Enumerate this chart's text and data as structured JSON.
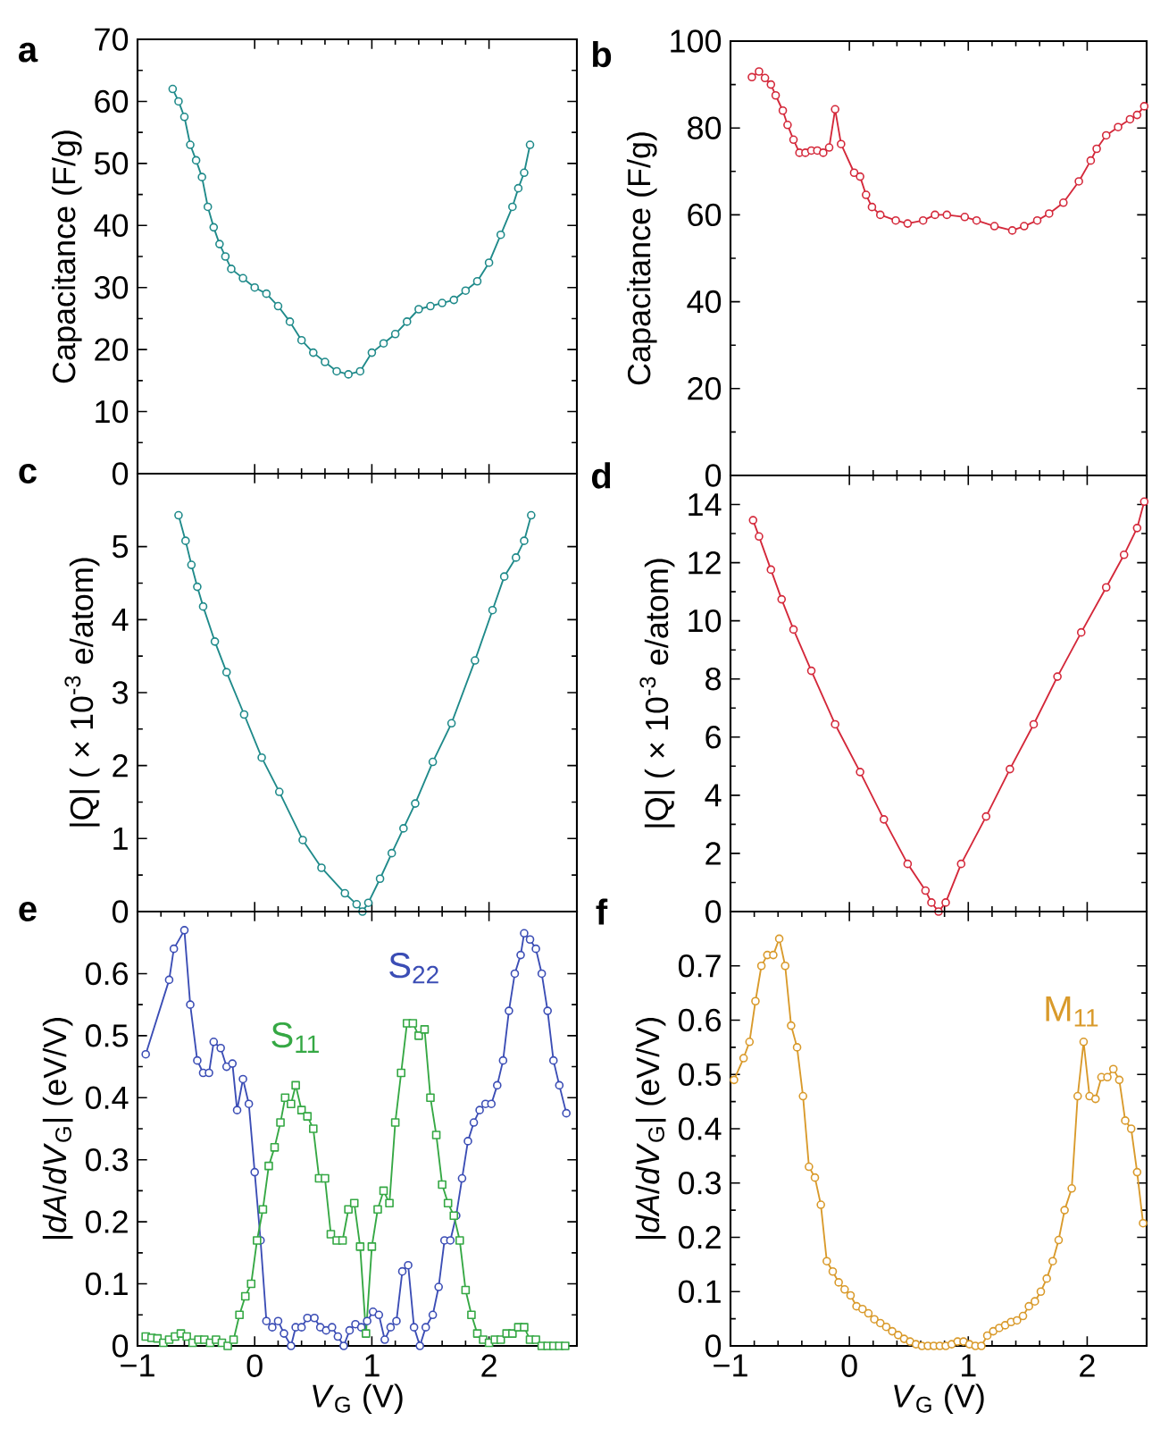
{
  "chart_data": [
    {
      "type": "line",
      "ylabel": "Capacitance (F/g)",
      "annotations": [
        "a"
      ],
      "marker": "circle",
      "tick_labels": "y",
      "color": "#1f8a8a",
      "xlim": [
        -1,
        2.75
      ],
      "xticks": [
        0,
        1,
        2
      ],
      "ylim": [
        0,
        70
      ],
      "yticks": [
        0,
        10,
        20,
        30,
        40,
        50,
        60,
        70
      ],
      "x": [
        -0.7,
        -0.65,
        -0.6,
        -0.55,
        -0.5,
        -0.45,
        -0.4,
        -0.35,
        -0.3,
        -0.25,
        -0.2,
        -0.1,
        0,
        0.1,
        0.2,
        0.3,
        0.4,
        0.5,
        0.6,
        0.7,
        0.8,
        0.9,
        1.0,
        1.1,
        1.2,
        1.3,
        1.4,
        1.5,
        1.6,
        1.7,
        1.8,
        1.9,
        2.0,
        2.1,
        2.2,
        2.25,
        2.3,
        2.35
      ],
      "values": [
        62,
        60,
        57.5,
        53,
        50.5,
        47.8,
        43,
        39.7,
        37,
        35,
        33,
        31.5,
        30,
        29,
        27,
        24.5,
        21.5,
        19.5,
        18,
        16.5,
        16,
        16.5,
        19.5,
        21,
        22.5,
        24.5,
        26.5,
        27,
        27.5,
        28,
        29.5,
        31,
        34,
        38.5,
        43,
        46,
        48.5,
        53
      ]
    },
    {
      "type": "line",
      "ylabel": "Capacitance (F/g)",
      "annotations": [
        "b"
      ],
      "marker": "circle",
      "tick_labels": "y",
      "color": "#d4283a",
      "xlim": [
        -1,
        2.5
      ],
      "xticks": [
        0,
        1,
        2
      ],
      "ylim": [
        0,
        100
      ],
      "yticks": [
        0,
        20,
        40,
        60,
        80,
        100
      ],
      "x": [
        -0.82,
        -0.76,
        -0.71,
        -0.66,
        -0.62,
        -0.56,
        -0.52,
        -0.47,
        -0.42,
        -0.37,
        -0.32,
        -0.27,
        -0.22,
        -0.17,
        -0.12,
        -0.07,
        0.04,
        0.09,
        0.14,
        0.19,
        0.26,
        0.39,
        0.49,
        0.62,
        0.72,
        0.82,
        0.97,
        1.07,
        1.22,
        1.37,
        1.47,
        1.58,
        1.68,
        1.8,
        1.93,
        2.03,
        2.08,
        2.16,
        2.26,
        2.36,
        2.42,
        2.48
      ],
      "values": [
        91.7,
        93,
        91.5,
        90,
        87.5,
        84,
        80.7,
        77.3,
        74.3,
        74.3,
        74.8,
        74.8,
        74.3,
        75.5,
        84.3,
        76.3,
        69.7,
        68.8,
        64.6,
        61.8,
        60,
        58.7,
        58,
        58.7,
        60,
        60,
        59.5,
        58.7,
        57.4,
        56.4,
        57.4,
        58.7,
        60.3,
        62.8,
        67.7,
        72.5,
        75.2,
        78.3,
        80.2,
        82,
        83,
        85
      ]
    },
    {
      "type": "line",
      "ylabel": "|Q| ( × 10$^{-3}$ e/atom)",
      "annotations": [
        "c"
      ],
      "marker": "circle",
      "tick_labels": "y",
      "color": "#1f8a8a",
      "xlim": [
        -1,
        2.75
      ],
      "xticks": [
        0,
        1,
        2
      ],
      "ylim": [
        0,
        6
      ],
      "yticks": [
        0,
        1,
        2,
        3,
        4,
        5
      ],
      "x": [
        -0.65,
        -0.59,
        -0.54,
        -0.49,
        -0.44,
        -0.34,
        -0.24,
        -0.09,
        0.06,
        0.21,
        0.41,
        0.57,
        0.77,
        0.87,
        0.92,
        0.97,
        1.07,
        1.17,
        1.27,
        1.37,
        1.52,
        1.68,
        1.88,
        2.03,
        2.13,
        2.23,
        2.3,
        2.36
      ],
      "values": [
        5.43,
        5.08,
        4.75,
        4.45,
        4.18,
        3.7,
        3.28,
        2.7,
        2.11,
        1.64,
        0.98,
        0.6,
        0.25,
        0.1,
        0.0,
        0.12,
        0.45,
        0.8,
        1.14,
        1.48,
        2.05,
        2.58,
        3.44,
        4.13,
        4.59,
        4.85,
        5.08,
        5.43
      ]
    },
    {
      "type": "line",
      "ylabel": "|Q| ( × 10$^{-3}$ e/atom)",
      "annotations": [
        "d"
      ],
      "marker": "circle",
      "tick_labels": "y",
      "color": "#d4283a",
      "xlim": [
        -1,
        2.5
      ],
      "xticks": [
        0,
        1,
        2
      ],
      "ylim": [
        0,
        15
      ],
      "yticks": [
        0,
        2,
        4,
        6,
        8,
        10,
        12,
        14
      ],
      "x": [
        -0.81,
        -0.76,
        -0.66,
        -0.57,
        -0.47,
        -0.32,
        -0.12,
        0.09,
        0.29,
        0.49,
        0.64,
        0.69,
        0.75,
        0.81,
        0.94,
        1.15,
        1.35,
        1.55,
        1.75,
        1.95,
        2.16,
        2.31,
        2.42,
        2.48
      ],
      "values": [
        13.46,
        12.9,
        11.76,
        10.74,
        9.7,
        8.28,
        6.44,
        4.8,
        3.17,
        1.64,
        0.72,
        0.31,
        0.0,
        0.31,
        1.64,
        3.27,
        4.9,
        6.44,
        8.08,
        9.6,
        11.15,
        12.27,
        13.19,
        14.1
      ]
    },
    {
      "type": "line",
      "ylabel": "|*dA*/*dV*$_{G}$| (eV/V)",
      "xlabel": "*V*$_{G}$ (V)",
      "annotations": [
        "e"
      ],
      "marker": "circle",
      "xlim": [
        -1,
        2.75
      ],
      "xticks": [
        {
          "value": -1,
          "label": "−1"
        },
        0,
        1,
        2
      ],
      "ylim": [
        0,
        0.7
      ],
      "yticks": [
        0,
        0.1,
        0.2,
        0.3,
        0.4,
        0.5,
        0.6
      ],
      "series": [
        {
          "name": "S$_{22}$",
          "color": "#3b4db5",
          "x": [
            -0.93,
            -0.73,
            -0.69,
            -0.6,
            -0.55,
            -0.49,
            -0.44,
            -0.39,
            -0.35,
            -0.29,
            -0.24,
            -0.19,
            -0.15,
            -0.1,
            -0.05,
            0.0,
            0.05,
            0.1,
            0.15,
            0.2,
            0.25,
            0.31,
            0.35,
            0.4,
            0.45,
            0.51,
            0.56,
            0.61,
            0.66,
            0.71,
            0.76,
            0.81,
            0.86,
            0.91,
            0.96,
            1.01,
            1.06,
            1.11,
            1.16,
            1.21,
            1.26,
            1.31,
            1.36,
            1.41,
            1.46,
            1.52,
            1.57,
            1.62,
            1.67,
            1.72,
            1.77,
            1.82,
            1.87,
            1.92,
            1.97,
            2.02,
            2.07,
            2.12,
            2.17,
            2.22,
            2.27,
            2.3,
            2.35,
            2.4,
            2.45,
            2.5,
            2.55,
            2.6,
            2.66
          ],
          "values": [
            0.47,
            0.59,
            0.64,
            0.67,
            0.55,
            0.46,
            0.44,
            0.44,
            0.49,
            0.48,
            0.45,
            0.455,
            0.38,
            0.43,
            0.39,
            0.28,
            0.17,
            0.04,
            0.03,
            0.04,
            0.02,
            0.0,
            0.03,
            0.03,
            0.045,
            0.045,
            0.03,
            0.025,
            0.03,
            0.015,
            0.0,
            0.025,
            0.035,
            0.03,
            0.04,
            0.055,
            0.05,
            0.01,
            0.03,
            0.04,
            0.12,
            0.13,
            0.03,
            0.0,
            0.03,
            0.05,
            0.095,
            0.17,
            0.17,
            0.21,
            0.27,
            0.33,
            0.36,
            0.38,
            0.39,
            0.39,
            0.42,
            0.46,
            0.54,
            0.6,
            0.63,
            0.665,
            0.655,
            0.64,
            0.6,
            0.54,
            0.46,
            0.42,
            0.375
          ]
        },
        {
          "name": "S$_{11}$",
          "color": "#35a844",
          "marker": "square",
          "x": [
            -0.93,
            -0.88,
            -0.83,
            -0.78,
            -0.73,
            -0.68,
            -0.63,
            -0.58,
            -0.53,
            -0.48,
            -0.43,
            -0.38,
            -0.33,
            -0.28,
            -0.23,
            -0.18,
            -0.13,
            -0.08,
            -0.03,
            0.02,
            0.07,
            0.12,
            0.17,
            0.22,
            0.26,
            0.31,
            0.35,
            0.4,
            0.45,
            0.5,
            0.55,
            0.6,
            0.65,
            0.7,
            0.75,
            0.8,
            0.85,
            0.9,
            0.95,
            1.0,
            1.05,
            1.1,
            1.15,
            1.2,
            1.25,
            1.3,
            1.35,
            1.4,
            1.45,
            1.5,
            1.55,
            1.6,
            1.65,
            1.7,
            1.75,
            1.8,
            1.85,
            1.9,
            1.95,
            2.0,
            2.05,
            2.1,
            2.15,
            2.2,
            2.25,
            2.3,
            2.35,
            2.4,
            2.45,
            2.5,
            2.55,
            2.6,
            2.65
          ],
          "values": [
            0.015,
            0.013,
            0.012,
            0.005,
            0.01,
            0.015,
            0.02,
            0.015,
            0.005,
            0.01,
            0.01,
            0.005,
            0.01,
            0.005,
            0.0,
            0.01,
            0.05,
            0.08,
            0.1,
            0.17,
            0.22,
            0.29,
            0.32,
            0.36,
            0.4,
            0.39,
            0.42,
            0.38,
            0.37,
            0.35,
            0.27,
            0.27,
            0.18,
            0.17,
            0.17,
            0.22,
            0.23,
            0.16,
            0.02,
            0.16,
            0.22,
            0.25,
            0.23,
            0.36,
            0.44,
            0.52,
            0.52,
            0.5,
            0.51,
            0.4,
            0.34,
            0.26,
            0.23,
            0.21,
            0.17,
            0.09,
            0.05,
            0.02,
            0.01,
            0.005,
            0.01,
            0.01,
            0.02,
            0.02,
            0.03,
            0.03,
            0.01,
            0.01,
            0.0,
            0.0,
            0.0,
            0.0,
            0.0
          ]
        }
      ]
    },
    {
      "type": "line",
      "ylabel": "|*dA*/*dV*$_{G}$| (eV/V)",
      "xlabel": "*V*$_{G}$ (V)",
      "annotations": [
        "f"
      ],
      "marker": "circle",
      "xlim": [
        -1,
        2.5
      ],
      "xticks": [
        {
          "value": -1,
          "label": "−1"
        },
        0,
        1,
        2
      ],
      "ylim": [
        0,
        0.8
      ],
      "yticks": [
        0,
        0.1,
        0.2,
        0.3,
        0.4,
        0.5,
        0.6,
        0.7
      ],
      "series": [
        {
          "name": "M$_{11}$",
          "color": "#d99a2b",
          "x": [
            -0.97,
            -0.89,
            -0.84,
            -0.79,
            -0.74,
            -0.69,
            -0.64,
            -0.59,
            -0.54,
            -0.49,
            -0.44,
            -0.39,
            -0.34,
            -0.29,
            -0.24,
            -0.19,
            -0.14,
            -0.09,
            -0.04,
            0.01,
            0.06,
            0.11,
            0.16,
            0.21,
            0.26,
            0.31,
            0.36,
            0.41,
            0.46,
            0.51,
            0.56,
            0.61,
            0.66,
            0.71,
            0.76,
            0.81,
            0.86,
            0.91,
            0.96,
            1.01,
            1.06,
            1.11,
            1.16,
            1.21,
            1.26,
            1.31,
            1.36,
            1.41,
            1.46,
            1.51,
            1.56,
            1.61,
            1.66,
            1.71,
            1.76,
            1.81,
            1.87,
            1.92,
            1.97,
            2.02,
            2.07,
            2.12,
            2.17,
            2.22,
            2.27,
            2.32,
            2.37,
            2.42,
            2.47
          ],
          "values": [
            0.49,
            0.53,
            0.56,
            0.635,
            0.7,
            0.72,
            0.72,
            0.75,
            0.7,
            0.59,
            0.55,
            0.46,
            0.33,
            0.31,
            0.26,
            0.156,
            0.137,
            0.117,
            0.104,
            0.093,
            0.073,
            0.068,
            0.06,
            0.049,
            0.042,
            0.035,
            0.027,
            0.02,
            0.013,
            0.008,
            0.003,
            0.0,
            0.0,
            0.0,
            0.0,
            0.0,
            0.003,
            0.008,
            0.008,
            0.003,
            0.0,
            0.0,
            0.019,
            0.027,
            0.033,
            0.038,
            0.044,
            0.047,
            0.055,
            0.073,
            0.082,
            0.1,
            0.124,
            0.156,
            0.195,
            0.25,
            0.29,
            0.46,
            0.56,
            0.46,
            0.455,
            0.495,
            0.495,
            0.51,
            0.49,
            0.415,
            0.4,
            0.32,
            0.226
          ]
        }
      ]
    }
  ]
}
